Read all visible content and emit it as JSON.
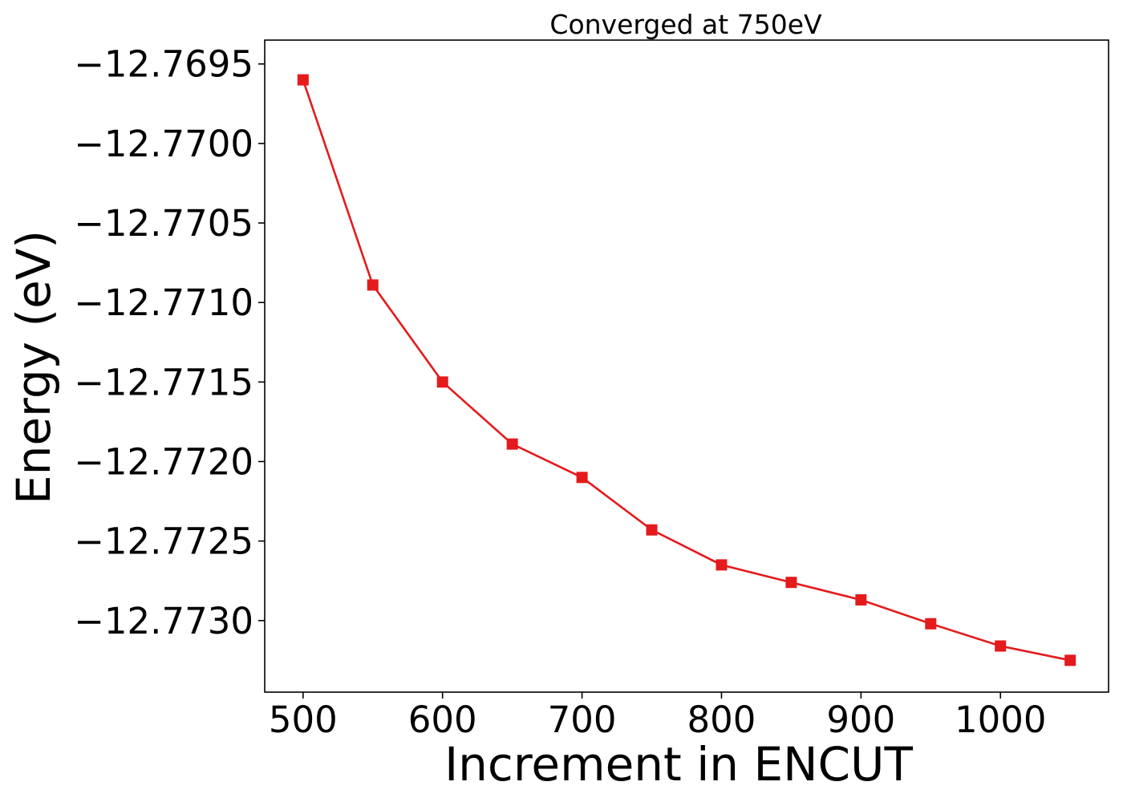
{
  "chart_data": {
    "type": "line",
    "title": "Converged at 750eV",
    "xlabel": "Increment in ENCUT",
    "ylabel": "Energy (eV)",
    "xlim": [
      472.5,
      1077.5
    ],
    "ylim": [
      -12.77345,
      -12.76935
    ],
    "xticks": [
      500,
      600,
      700,
      800,
      900,
      1000
    ],
    "yticks": [
      -12.7695,
      -12.77,
      -12.7705,
      -12.771,
      -12.7715,
      -12.772,
      -12.7725,
      -12.773
    ],
    "ytick_labels": [
      "−12.7695",
      "−12.7700",
      "−12.7705",
      "−12.7710",
      "−12.7715",
      "−12.7720",
      "−12.7725",
      "−12.7730"
    ],
    "grid": false,
    "series": [
      {
        "color": "#e41a1c",
        "marker": "square",
        "x": [
          500,
          550,
          600,
          650,
          700,
          750,
          800,
          850,
          900,
          950,
          1000,
          1050
        ],
        "y": [
          -12.7696,
          -12.77089,
          -12.7715,
          -12.77189,
          -12.7721,
          -12.77243,
          -12.77265,
          -12.77276,
          -12.77287,
          -12.77302,
          -12.77316,
          -12.77325
        ]
      }
    ]
  }
}
